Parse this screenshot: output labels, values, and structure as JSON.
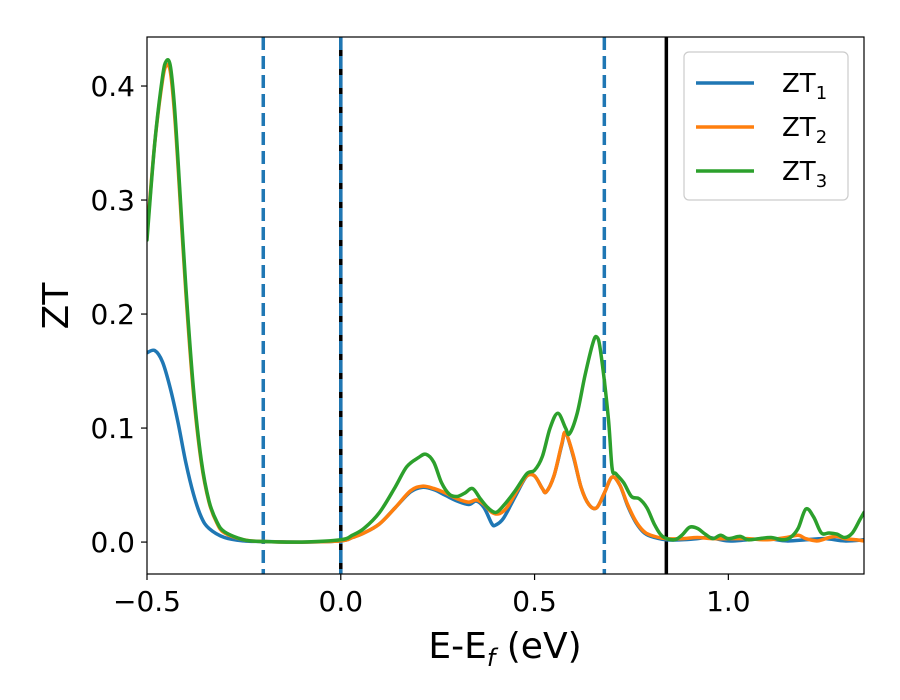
{
  "chart_data": {
    "type": "line",
    "title": "",
    "xlabel": "E-E",
    "xlabel_sub": "f",
    "xlabel_suffix": " (eV)",
    "ylabel": "ZT",
    "xlim": [
      -0.5,
      1.35
    ],
    "ylim": [
      -0.028,
      0.443
    ],
    "xticks": [
      -0.5,
      0.0,
      0.5,
      1.0
    ],
    "xtick_labels": [
      "−0.5",
      "0.0",
      "0.5",
      "1.0"
    ],
    "yticks": [
      0.0,
      0.1,
      0.2,
      0.3,
      0.4
    ],
    "ytick_labels": [
      "0.0",
      "0.1",
      "0.2",
      "0.3",
      "0.4"
    ],
    "grid": false,
    "legend_position": "top-right",
    "vlines": [
      {
        "x": -0.2,
        "style": "dashed",
        "color": "#1f77b4"
      },
      {
        "x": 0.0,
        "style": "solid",
        "color": "#000000"
      },
      {
        "x": 0.0,
        "style": "dashed",
        "color": "#1f77b4"
      },
      {
        "x": 0.68,
        "style": "dashed",
        "color": "#1f77b4"
      },
      {
        "x": 0.84,
        "style": "solid",
        "color": "#000000"
      }
    ],
    "series": [
      {
        "name": "ZT",
        "subscript": "1",
        "color": "#1f77b4",
        "points": [
          [
            -0.5,
            0.166
          ],
          [
            -0.48,
            0.168
          ],
          [
            -0.46,
            0.158
          ],
          [
            -0.44,
            0.135
          ],
          [
            -0.42,
            0.105
          ],
          [
            -0.4,
            0.07
          ],
          [
            -0.38,
            0.042
          ],
          [
            -0.36,
            0.022
          ],
          [
            -0.34,
            0.012
          ],
          [
            -0.3,
            0.004
          ],
          [
            -0.25,
            0.001
          ],
          [
            -0.2,
            0.0005
          ],
          [
            -0.1,
            0.0
          ],
          [
            0.0,
            0.001
          ],
          [
            0.03,
            0.004
          ],
          [
            0.06,
            0.008
          ],
          [
            0.1,
            0.016
          ],
          [
            0.14,
            0.03
          ],
          [
            0.18,
            0.044
          ],
          [
            0.21,
            0.048
          ],
          [
            0.24,
            0.046
          ],
          [
            0.27,
            0.041
          ],
          [
            0.3,
            0.036
          ],
          [
            0.33,
            0.033
          ],
          [
            0.35,
            0.036
          ],
          [
            0.37,
            0.03
          ],
          [
            0.39,
            0.016
          ],
          [
            0.4,
            0.015
          ],
          [
            0.42,
            0.021
          ],
          [
            0.45,
            0.04
          ],
          [
            0.48,
            0.058
          ],
          [
            0.5,
            0.058
          ],
          [
            0.52,
            0.047
          ],
          [
            0.53,
            0.044
          ],
          [
            0.55,
            0.058
          ],
          [
            0.57,
            0.085
          ],
          [
            0.58,
            0.096
          ],
          [
            0.6,
            0.075
          ],
          [
            0.62,
            0.048
          ],
          [
            0.64,
            0.033
          ],
          [
            0.66,
            0.03
          ],
          [
            0.68,
            0.043
          ],
          [
            0.7,
            0.057
          ],
          [
            0.72,
            0.05
          ],
          [
            0.74,
            0.032
          ],
          [
            0.76,
            0.018
          ],
          [
            0.78,
            0.009
          ],
          [
            0.8,
            0.005
          ],
          [
            0.84,
            0.002
          ],
          [
            0.88,
            0.002
          ],
          [
            0.92,
            0.003
          ],
          [
            0.95,
            0.004
          ],
          [
            1.0,
            0.001
          ],
          [
            1.05,
            0.002
          ],
          [
            1.1,
            0.003
          ],
          [
            1.15,
            0.001
          ],
          [
            1.2,
            0.002
          ],
          [
            1.25,
            0.003
          ],
          [
            1.3,
            0.001
          ],
          [
            1.35,
            0.002
          ]
        ]
      },
      {
        "name": "ZT",
        "subscript": "2",
        "color": "#ff7f0e",
        "points": [
          [
            -0.5,
            0.27
          ],
          [
            -0.48,
            0.35
          ],
          [
            -0.46,
            0.405
          ],
          [
            -0.45,
            0.418
          ],
          [
            -0.44,
            0.413
          ],
          [
            -0.43,
            0.38
          ],
          [
            -0.42,
            0.33
          ],
          [
            -0.4,
            0.22
          ],
          [
            -0.38,
            0.13
          ],
          [
            -0.36,
            0.07
          ],
          [
            -0.34,
            0.035
          ],
          [
            -0.32,
            0.017
          ],
          [
            -0.3,
            0.008
          ],
          [
            -0.25,
            0.002
          ],
          [
            -0.2,
            0.0005
          ],
          [
            -0.1,
            0.0
          ],
          [
            0.0,
            0.001
          ],
          [
            0.03,
            0.004
          ],
          [
            0.06,
            0.008
          ],
          [
            0.1,
            0.016
          ],
          [
            0.14,
            0.03
          ],
          [
            0.18,
            0.045
          ],
          [
            0.21,
            0.049
          ],
          [
            0.24,
            0.047
          ],
          [
            0.27,
            0.043
          ],
          [
            0.3,
            0.038
          ],
          [
            0.33,
            0.035
          ],
          [
            0.35,
            0.037
          ],
          [
            0.37,
            0.033
          ],
          [
            0.39,
            0.026
          ],
          [
            0.41,
            0.025
          ],
          [
            0.43,
            0.031
          ],
          [
            0.46,
            0.048
          ],
          [
            0.48,
            0.058
          ],
          [
            0.5,
            0.058
          ],
          [
            0.52,
            0.047
          ],
          [
            0.53,
            0.044
          ],
          [
            0.55,
            0.058
          ],
          [
            0.57,
            0.086
          ],
          [
            0.58,
            0.096
          ],
          [
            0.6,
            0.076
          ],
          [
            0.62,
            0.048
          ],
          [
            0.64,
            0.033
          ],
          [
            0.66,
            0.03
          ],
          [
            0.68,
            0.043
          ],
          [
            0.7,
            0.057
          ],
          [
            0.72,
            0.05
          ],
          [
            0.74,
            0.033
          ],
          [
            0.76,
            0.019
          ],
          [
            0.78,
            0.01
          ],
          [
            0.8,
            0.006
          ],
          [
            0.84,
            0.003
          ],
          [
            0.88,
            0.003
          ],
          [
            0.92,
            0.004
          ],
          [
            0.96,
            0.003
          ],
          [
            1.0,
            0.003
          ],
          [
            1.05,
            0.003
          ],
          [
            1.1,
            0.002
          ],
          [
            1.15,
            0.004
          ],
          [
            1.18,
            0.006
          ],
          [
            1.2,
            0.003
          ],
          [
            1.23,
            0.001
          ],
          [
            1.26,
            0.004
          ],
          [
            1.28,
            0.005
          ],
          [
            1.3,
            0.003
          ],
          [
            1.33,
            0.002
          ],
          [
            1.35,
            0.001
          ]
        ]
      },
      {
        "name": "ZT",
        "subscript": "3",
        "color": "#2ca02c",
        "points": [
          [
            -0.5,
            0.265
          ],
          [
            -0.48,
            0.35
          ],
          [
            -0.46,
            0.408
          ],
          [
            -0.45,
            0.422
          ],
          [
            -0.44,
            0.418
          ],
          [
            -0.43,
            0.386
          ],
          [
            -0.42,
            0.335
          ],
          [
            -0.4,
            0.225
          ],
          [
            -0.38,
            0.134
          ],
          [
            -0.36,
            0.072
          ],
          [
            -0.34,
            0.036
          ],
          [
            -0.32,
            0.018
          ],
          [
            -0.3,
            0.009
          ],
          [
            -0.25,
            0.002
          ],
          [
            -0.2,
            0.0005
          ],
          [
            -0.1,
            0.0
          ],
          [
            0.0,
            0.002
          ],
          [
            0.03,
            0.006
          ],
          [
            0.06,
            0.012
          ],
          [
            0.1,
            0.026
          ],
          [
            0.14,
            0.048
          ],
          [
            0.17,
            0.066
          ],
          [
            0.2,
            0.074
          ],
          [
            0.22,
            0.077
          ],
          [
            0.24,
            0.07
          ],
          [
            0.26,
            0.052
          ],
          [
            0.28,
            0.042
          ],
          [
            0.3,
            0.04
          ],
          [
            0.32,
            0.043
          ],
          [
            0.34,
            0.047
          ],
          [
            0.36,
            0.038
          ],
          [
            0.38,
            0.03
          ],
          [
            0.4,
            0.026
          ],
          [
            0.42,
            0.032
          ],
          [
            0.45,
            0.045
          ],
          [
            0.48,
            0.06
          ],
          [
            0.5,
            0.063
          ],
          [
            0.52,
            0.075
          ],
          [
            0.54,
            0.1
          ],
          [
            0.56,
            0.113
          ],
          [
            0.58,
            0.1
          ],
          [
            0.59,
            0.095
          ],
          [
            0.61,
            0.113
          ],
          [
            0.63,
            0.146
          ],
          [
            0.65,
            0.174
          ],
          [
            0.66,
            0.18
          ],
          [
            0.67,
            0.168
          ],
          [
            0.69,
            0.11
          ],
          [
            0.7,
            0.065
          ],
          [
            0.71,
            0.06
          ],
          [
            0.73,
            0.052
          ],
          [
            0.75,
            0.04
          ],
          [
            0.77,
            0.038
          ],
          [
            0.79,
            0.03
          ],
          [
            0.81,
            0.015
          ],
          [
            0.83,
            0.005
          ],
          [
            0.86,
            0.002
          ],
          [
            0.88,
            0.006
          ],
          [
            0.9,
            0.013
          ],
          [
            0.92,
            0.012
          ],
          [
            0.94,
            0.007
          ],
          [
            0.96,
            0.003
          ],
          [
            0.98,
            0.006
          ],
          [
            1.0,
            0.003
          ],
          [
            1.03,
            0.005
          ],
          [
            1.05,
            0.002
          ],
          [
            1.08,
            0.003
          ],
          [
            1.11,
            0.004
          ],
          [
            1.14,
            0.002
          ],
          [
            1.16,
            0.004
          ],
          [
            1.18,
            0.012
          ],
          [
            1.2,
            0.029
          ],
          [
            1.22,
            0.022
          ],
          [
            1.24,
            0.008
          ],
          [
            1.26,
            0.008
          ],
          [
            1.28,
            0.007
          ],
          [
            1.3,
            0.004
          ],
          [
            1.32,
            0.008
          ],
          [
            1.34,
            0.02
          ],
          [
            1.35,
            0.026
          ]
        ]
      }
    ]
  }
}
